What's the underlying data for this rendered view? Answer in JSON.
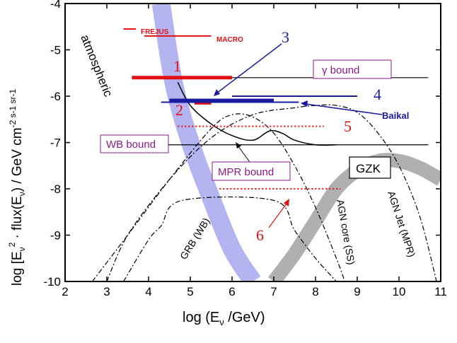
{
  "chart_data": {
    "type": "line",
    "title": "",
    "xlabel_main": "log (E",
    "xlabel_sub": "ν",
    "xlabel_tail": " /GeV)",
    "ylabel_main": "log [E",
    "ylabel_sub1": "ν",
    "ylabel_sup": "2",
    "ylabel_mid": " · flux(E",
    "ylabel_sub2": "ν",
    "ylabel_tail": ") / GeV cm",
    "ylabel_units": "-2 s-1 sr-1",
    "xlim": [
      2,
      11
    ],
    "ylim": [
      -10,
      -4
    ],
    "xticks": [
      "2",
      "3",
      "4",
      "5",
      "6",
      "7",
      "8",
      "9",
      "10",
      "11"
    ],
    "yticks": [
      "-4",
      "-5",
      "-6",
      "-7",
      "-8",
      "-9",
      "-10"
    ],
    "grid": false,
    "series": [
      {
        "name": "atmospheric",
        "style": "band",
        "color": "#b4b4f0",
        "x": [
          4.3,
          4.6,
          5.0,
          5.5,
          6.0,
          6.5
        ],
        "y": [
          -4.0,
          -5.7,
          -7.0,
          -8.2,
          -9.3,
          -10.0
        ]
      },
      {
        "name": "GZK",
        "style": "band",
        "color": "#b0b0b0",
        "x": [
          7.0,
          7.5,
          8.0,
          8.5,
          9.0,
          9.5,
          10.0,
          10.5,
          11.0
        ],
        "y": [
          -10.0,
          -9.4,
          -8.7,
          -8.0,
          -7.6,
          -7.4,
          -7.4,
          -7.55,
          -7.8
        ]
      },
      {
        "name": "γ bound",
        "style": "hline",
        "y": -5.6,
        "x": [
          3.6,
          10.7
        ]
      },
      {
        "name": "WB bound",
        "style": "hline",
        "y": -7.05,
        "x": [
          3.6,
          10.7
        ]
      },
      {
        "name": "MPR bound",
        "style": "solid",
        "x": [
          4.7,
          5.0,
          5.5,
          6.0,
          6.5,
          6.9,
          7.2,
          7.5,
          8.0,
          8.5
        ],
        "y": [
          -5.7,
          -6.2,
          -6.6,
          -6.85,
          -6.95,
          -6.75,
          -6.8,
          -6.95,
          -7.05,
          -7.05
        ]
      },
      {
        "name": "GRB (WB)",
        "style": "dashdot",
        "x": [
          3.4,
          4.0,
          4.3,
          4.8,
          7.0,
          7.5,
          8.0,
          8.5
        ],
        "y": [
          -10.0,
          -9.1,
          -8.8,
          -8.25,
          -8.25,
          -8.9,
          -9.5,
          -10.0
        ]
      },
      {
        "name": "AGN core (SS)",
        "style": "dashdot",
        "x": [
          2.65,
          3.5,
          4.5,
          5.5,
          6.0,
          6.5,
          7.0,
          7.5,
          8.0,
          8.5,
          8.7
        ],
        "y": [
          -10.0,
          -9.0,
          -7.8,
          -6.7,
          -6.4,
          -6.45,
          -6.8,
          -7.5,
          -8.4,
          -9.5,
          -10.0
        ]
      },
      {
        "name": "AGN Jet (MPR)",
        "style": "dashdot",
        "x": [
          3.0,
          3.5,
          4.5,
          5.5,
          6.5,
          7.5,
          8.0,
          8.5,
          9.0,
          9.5,
          10.0,
          10.5,
          10.9
        ],
        "y": [
          -10.0,
          -9.0,
          -7.8,
          -6.9,
          -6.4,
          -6.25,
          -6.2,
          -6.2,
          -6.35,
          -6.8,
          -7.5,
          -8.6,
          -10.0
        ]
      }
    ],
    "limits": [
      {
        "label": "FREJUS",
        "x": [
          3.4,
          3.7
        ],
        "y": -4.55,
        "color": "#e01010",
        "width": 2
      },
      {
        "label": "MACRO",
        "x": [
          3.9,
          5.5
        ],
        "y": -4.7,
        "color": "#e01010",
        "width": 2
      },
      {
        "label": "1",
        "x": [
          3.6,
          6.0
        ],
        "y": -5.6,
        "color": "#e01010",
        "width": 5
      },
      {
        "label": "2",
        "x": [
          5.1,
          5.5
        ],
        "y": -6.15,
        "color": "#e01010",
        "width": 4
      },
      {
        "label": "3",
        "x": [
          4.5,
          7.0
        ],
        "y": -6.1,
        "color": "#1a1aa0",
        "width": 6
      },
      {
        "label": "4",
        "x": [
          6.0,
          9.0
        ],
        "y": -6.0,
        "color": "#1a1aa0",
        "width": 2
      },
      {
        "label": "Baikal",
        "x": [
          4.3,
          7.6
        ],
        "y": -6.13,
        "color": "#1a1aa0",
        "width": 2
      },
      {
        "label": "5",
        "x": [
          4.7,
          8.2
        ],
        "y": -6.65,
        "color": "#e01010",
        "width": 2,
        "dotted": true
      },
      {
        "label": "6",
        "x": [
          5.7,
          8.6
        ],
        "y": -8.0,
        "color": "#e01010",
        "width": 2,
        "dotted": true
      }
    ],
    "annotations": {
      "atmospheric": "atmospheric",
      "frejus": "FREJUS",
      "macro": "MACRO",
      "n1": "1",
      "n2": "2",
      "n3": "3",
      "n4": "4",
      "n5": "5",
      "n6": "6",
      "baikal": "Baikal",
      "gamma_bound": "γ bound",
      "wb_bound": "WB bound",
      "mpr_bound": "MPR bound",
      "gzk": "GZK",
      "grb": "GRB (WB)",
      "agn_core": "AGN core (SS)",
      "agn_jet": "AGN Jet (MPR)"
    }
  }
}
